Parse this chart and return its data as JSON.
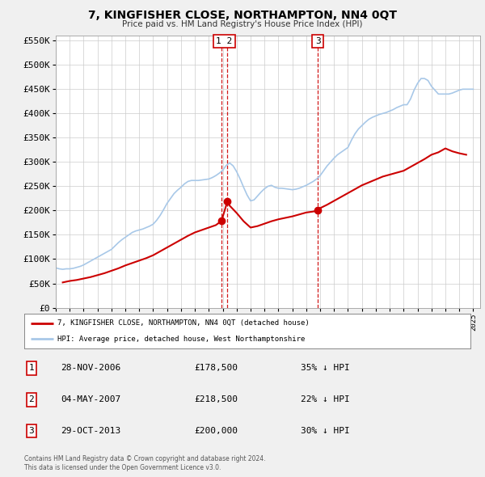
{
  "title": "7, KINGFISHER CLOSE, NORTHAMPTON, NN4 0QT",
  "subtitle": "Price paid vs. HM Land Registry's House Price Index (HPI)",
  "ylim": [
    0,
    560000
  ],
  "yticks": [
    0,
    50000,
    100000,
    150000,
    200000,
    250000,
    300000,
    350000,
    400000,
    450000,
    500000,
    550000
  ],
  "ytick_labels": [
    "£0",
    "£50K",
    "£100K",
    "£150K",
    "£200K",
    "£250K",
    "£300K",
    "£350K",
    "£400K",
    "£450K",
    "£500K",
    "£550K"
  ],
  "xlim_start": 1995.0,
  "xlim_end": 2025.5,
  "hpi_color": "#a8c8e8",
  "price_color": "#cc0000",
  "grid_color": "#cccccc",
  "bg_color": "#f0f0f0",
  "plot_bg_color": "#ffffff",
  "legend_label_price": "7, KINGFISHER CLOSE, NORTHAMPTON, NN4 0QT (detached house)",
  "legend_label_hpi": "HPI: Average price, detached house, West Northamptonshire",
  "transactions": [
    {
      "num": 1,
      "date": "28-NOV-2006",
      "price": 178500,
      "pct": "35%",
      "x": 2006.91
    },
    {
      "num": 2,
      "date": "04-MAY-2007",
      "price": 218500,
      "pct": "22%",
      "x": 2007.33
    },
    {
      "num": 3,
      "date": "29-OCT-2013",
      "price": 200000,
      "pct": "30%",
      "x": 2013.83
    }
  ],
  "footer_line1": "Contains HM Land Registry data © Crown copyright and database right 2024.",
  "footer_line2": "This data is licensed under the Open Government Licence v3.0.",
  "hpi_data_x": [
    1995.0,
    1995.25,
    1995.5,
    1995.75,
    1996.0,
    1996.25,
    1996.5,
    1996.75,
    1997.0,
    1997.25,
    1997.5,
    1997.75,
    1998.0,
    1998.25,
    1998.5,
    1998.75,
    1999.0,
    1999.25,
    1999.5,
    1999.75,
    2000.0,
    2000.25,
    2000.5,
    2000.75,
    2001.0,
    2001.25,
    2001.5,
    2001.75,
    2002.0,
    2002.25,
    2002.5,
    2002.75,
    2003.0,
    2003.25,
    2003.5,
    2003.75,
    2004.0,
    2004.25,
    2004.5,
    2004.75,
    2005.0,
    2005.25,
    2005.5,
    2005.75,
    2006.0,
    2006.25,
    2006.5,
    2006.75,
    2007.0,
    2007.25,
    2007.5,
    2007.75,
    2008.0,
    2008.25,
    2008.5,
    2008.75,
    2009.0,
    2009.25,
    2009.5,
    2009.75,
    2010.0,
    2010.25,
    2010.5,
    2010.75,
    2011.0,
    2011.25,
    2011.5,
    2011.75,
    2012.0,
    2012.25,
    2012.5,
    2012.75,
    2013.0,
    2013.25,
    2013.5,
    2013.75,
    2014.0,
    2014.25,
    2014.5,
    2014.75,
    2015.0,
    2015.25,
    2015.5,
    2015.75,
    2016.0,
    2016.25,
    2016.5,
    2016.75,
    2017.0,
    2017.25,
    2017.5,
    2017.75,
    2018.0,
    2018.25,
    2018.5,
    2018.75,
    2019.0,
    2019.25,
    2019.5,
    2019.75,
    2020.0,
    2020.25,
    2020.5,
    2020.75,
    2021.0,
    2021.25,
    2021.5,
    2021.75,
    2022.0,
    2022.25,
    2022.5,
    2022.75,
    2023.0,
    2023.25,
    2023.5,
    2023.75,
    2024.0,
    2024.25,
    2024.5,
    2024.75,
    2025.0
  ],
  "hpi_data_y": [
    82000,
    80000,
    79000,
    80000,
    80000,
    81000,
    83000,
    85000,
    88000,
    92000,
    96000,
    100000,
    104000,
    108000,
    112000,
    116000,
    120000,
    127000,
    134000,
    140000,
    145000,
    150000,
    155000,
    158000,
    160000,
    162000,
    165000,
    168000,
    172000,
    180000,
    190000,
    202000,
    215000,
    225000,
    235000,
    242000,
    248000,
    255000,
    260000,
    262000,
    262000,
    262000,
    263000,
    264000,
    265000,
    268000,
    272000,
    277000,
    283000,
    293000,
    298000,
    292000,
    280000,
    265000,
    248000,
    232000,
    220000,
    222000,
    230000,
    238000,
    245000,
    250000,
    252000,
    248000,
    246000,
    246000,
    245000,
    244000,
    243000,
    244000,
    246000,
    249000,
    252000,
    256000,
    260000,
    265000,
    272000,
    282000,
    292000,
    300000,
    308000,
    315000,
    320000,
    325000,
    330000,
    345000,
    358000,
    368000,
    375000,
    382000,
    388000,
    392000,
    395000,
    398000,
    400000,
    402000,
    405000,
    408000,
    412000,
    415000,
    418000,
    418000,
    430000,
    448000,
    462000,
    472000,
    472000,
    468000,
    456000,
    448000,
    440000,
    440000,
    440000,
    440000,
    442000,
    445000,
    448000,
    450000,
    450000,
    450000,
    450000
  ],
  "price_data_x": [
    1995.5,
    1996.0,
    1996.5,
    1997.0,
    1997.5,
    1998.0,
    1998.5,
    1999.0,
    1999.5,
    2000.0,
    2000.5,
    2001.0,
    2001.5,
    2002.0,
    2002.5,
    2003.0,
    2003.5,
    2004.0,
    2004.5,
    2005.0,
    2005.5,
    2006.0,
    2006.5,
    2006.91,
    2007.33,
    2007.5,
    2008.0,
    2008.5,
    2009.0,
    2009.5,
    2010.0,
    2010.5,
    2011.0,
    2011.5,
    2012.0,
    2012.5,
    2013.0,
    2013.5,
    2013.83,
    2014.0,
    2014.5,
    2015.0,
    2015.5,
    2016.0,
    2016.5,
    2017.0,
    2017.5,
    2018.0,
    2018.5,
    2019.0,
    2019.5,
    2020.0,
    2020.5,
    2021.0,
    2021.5,
    2022.0,
    2022.5,
    2023.0,
    2023.5,
    2024.0,
    2024.5
  ],
  "price_data_y": [
    52000,
    55000,
    57000,
    60000,
    63000,
    67000,
    71000,
    76000,
    81000,
    87000,
    92000,
    97000,
    102000,
    108000,
    116000,
    124000,
    132000,
    140000,
    148000,
    155000,
    160000,
    165000,
    170000,
    178500,
    218500,
    210000,
    195000,
    178000,
    165000,
    168000,
    173000,
    178000,
    182000,
    185000,
    188000,
    192000,
    196000,
    198000,
    200000,
    205000,
    212000,
    220000,
    228000,
    236000,
    244000,
    252000,
    258000,
    264000,
    270000,
    274000,
    278000,
    282000,
    290000,
    298000,
    306000,
    315000,
    320000,
    328000,
    322000,
    318000,
    315000
  ]
}
